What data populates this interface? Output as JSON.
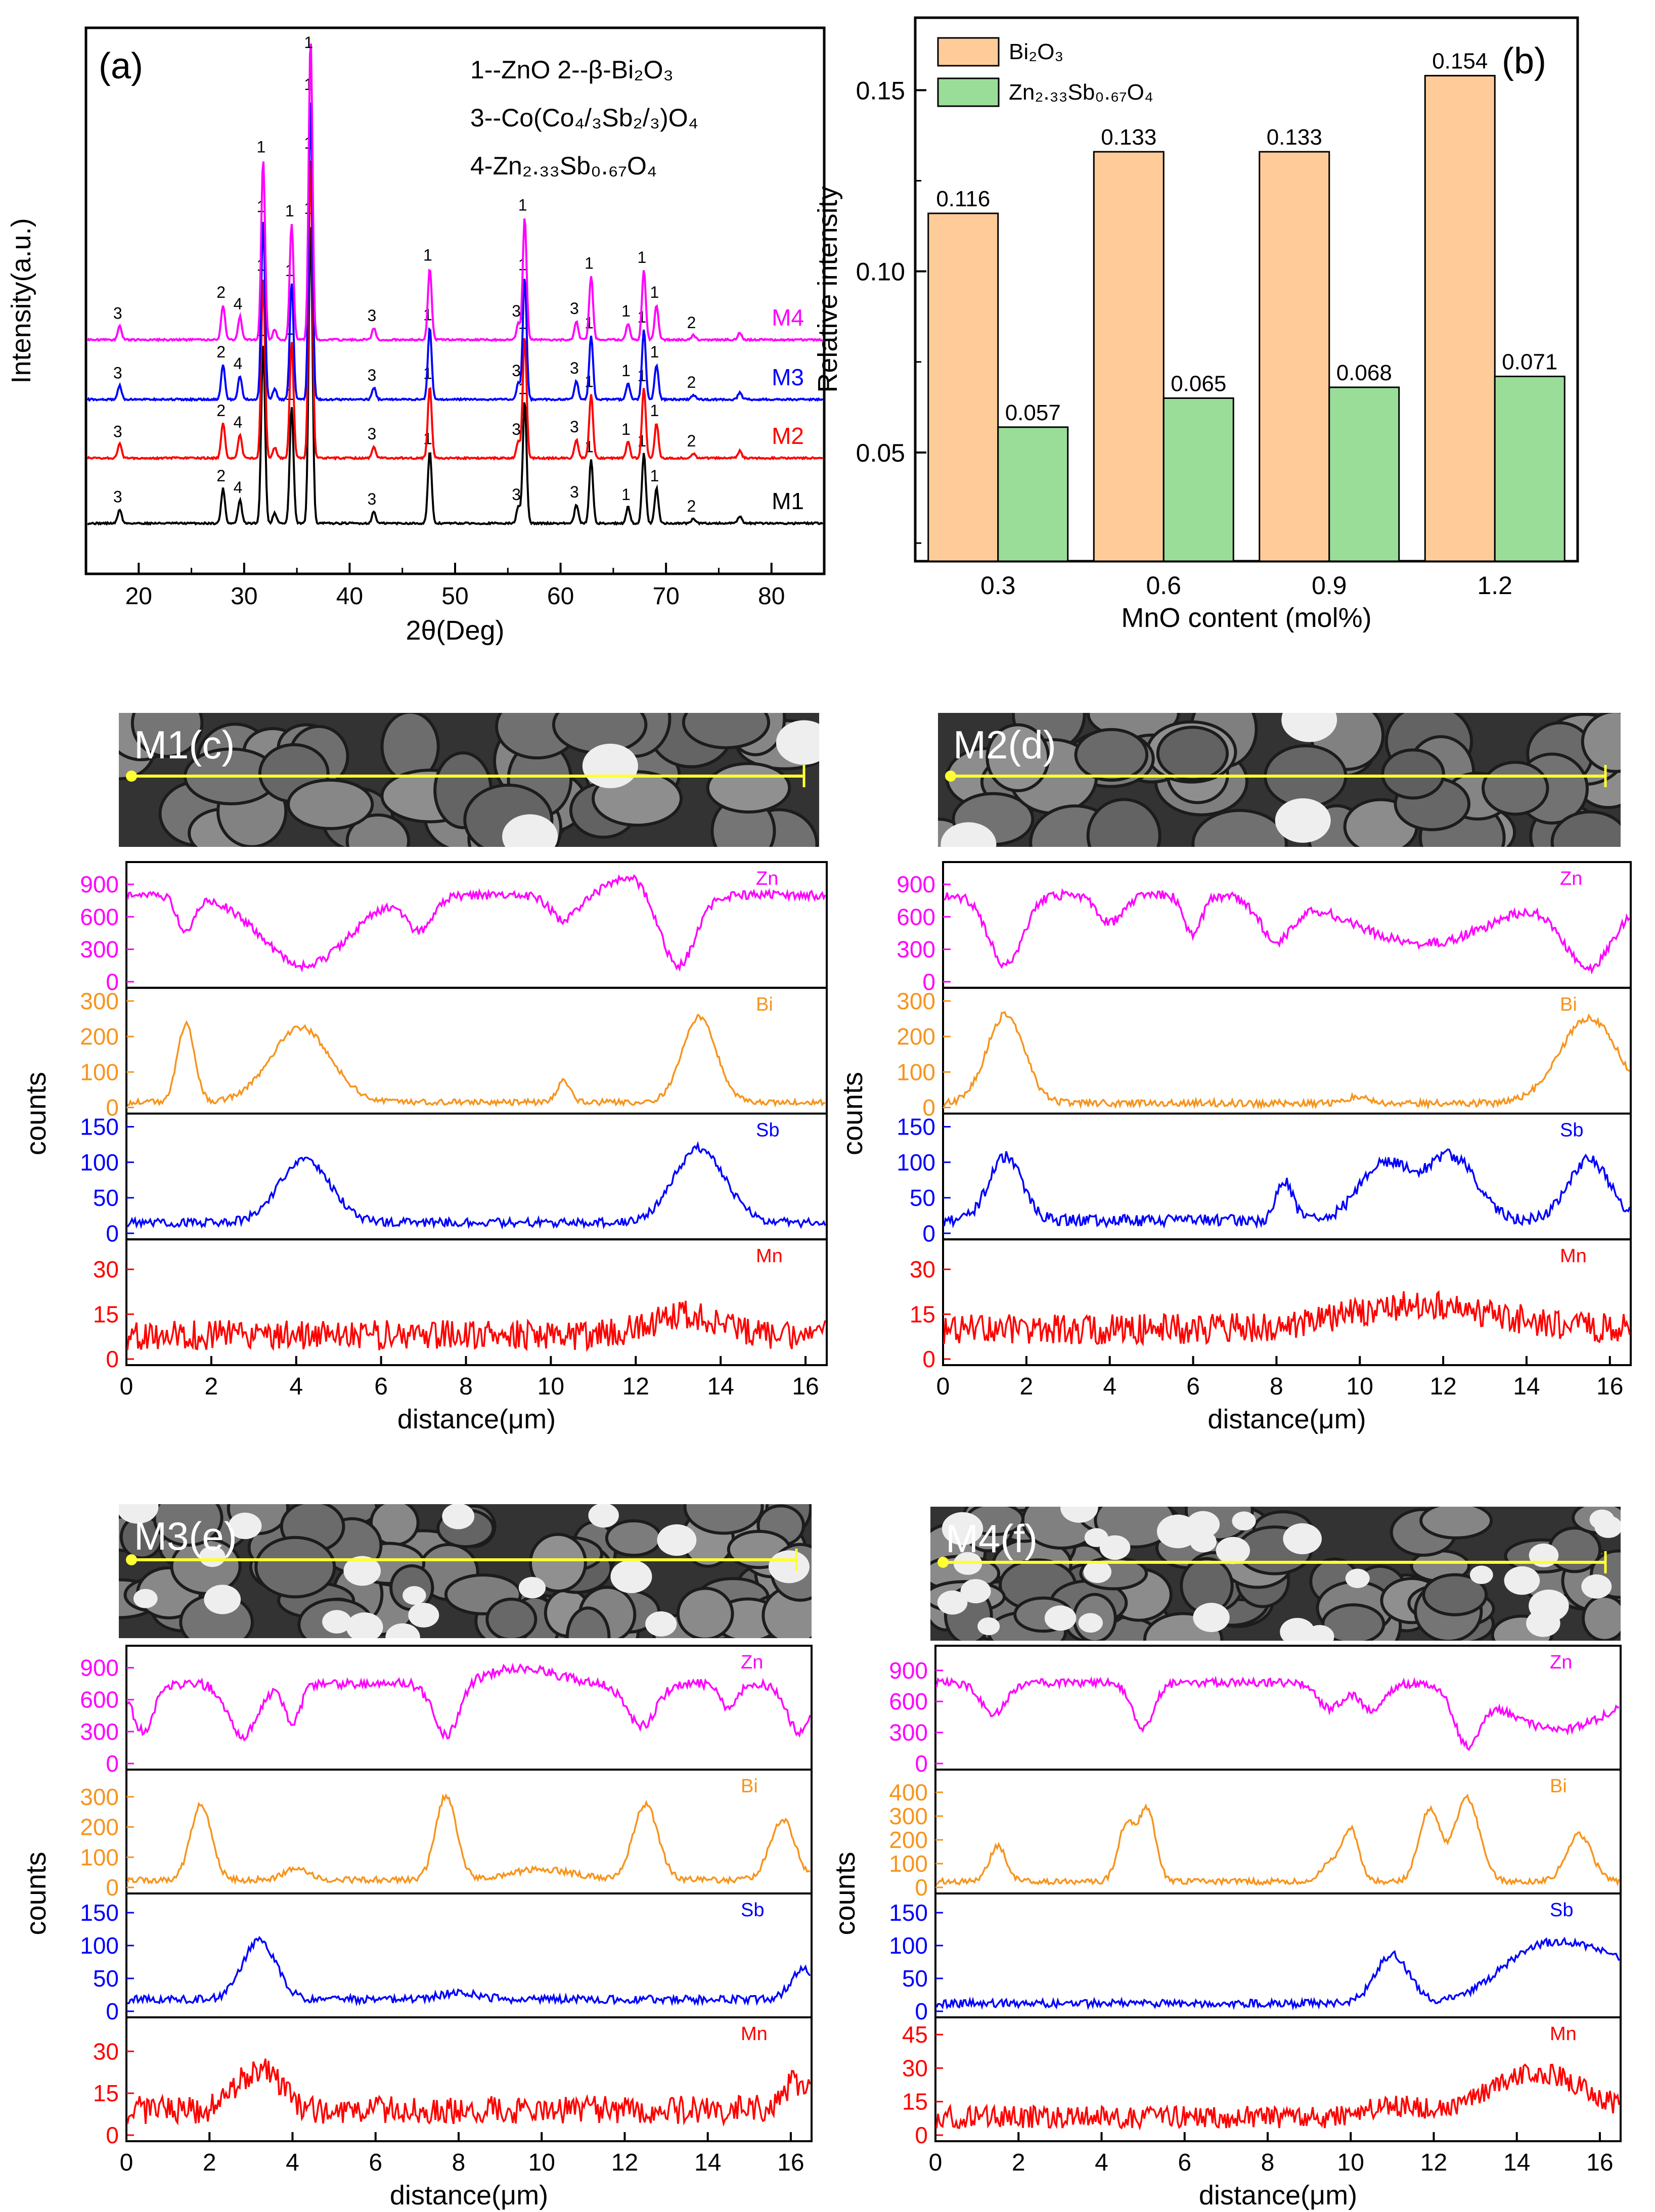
{
  "chart_data": [
    {
      "id": "a",
      "type": "line",
      "panel_label": "(a)",
      "xlabel": "2θ(Deg)",
      "ylabel": "Intensity(a.u.)",
      "xlim": [
        15,
        85
      ],
      "xticks": [
        20,
        30,
        40,
        50,
        60,
        70,
        80
      ],
      "legend_lines": [
        "1--ZnO   2--β-Bi₂O₃",
        "3--Co(Co₄/₃Sb₂/₃)O₄",
        "4-Zn₂.₃₃Sb₀.₆₇O₄"
      ],
      "series": [
        {
          "name": "M1",
          "color": "#000000"
        },
        {
          "name": "M2",
          "color": "#ff0000"
        },
        {
          "name": "M3",
          "color": "#0000ff"
        },
        {
          "name": "M4",
          "color": "#ff00ff"
        }
      ],
      "peaks": [
        {
          "x": 18.2,
          "height": 0.12,
          "label": "3"
        },
        {
          "x": 28.0,
          "height": 0.3,
          "label": "2"
        },
        {
          "x": 29.6,
          "height": 0.2,
          "label": "4"
        },
        {
          "x": 31.8,
          "height": 1.55,
          "label": "1"
        },
        {
          "x": 32.9,
          "height": 0.09,
          "label": ""
        },
        {
          "x": 34.5,
          "height": 1.0,
          "label": "1"
        },
        {
          "x": 36.3,
          "height": 2.6,
          "label": "1"
        },
        {
          "x": 42.3,
          "height": 0.1,
          "label": "3"
        },
        {
          "x": 47.6,
          "height": 0.62,
          "label": "1"
        },
        {
          "x": 56.0,
          "height": 0.14,
          "label": "3"
        },
        {
          "x": 56.6,
          "height": 1.05,
          "label": "1"
        },
        {
          "x": 61.5,
          "height": 0.16,
          "label": "3"
        },
        {
          "x": 62.9,
          "height": 0.55,
          "label": "1"
        },
        {
          "x": 66.4,
          "height": 0.14,
          "label": "1"
        },
        {
          "x": 67.9,
          "height": 0.6,
          "label": "1"
        },
        {
          "x": 69.1,
          "height": 0.3,
          "label": "1"
        },
        {
          "x": 72.6,
          "height": 0.04,
          "label": "2"
        },
        {
          "x": 77.0,
          "height": 0.06,
          "label": ""
        }
      ]
    },
    {
      "id": "b",
      "type": "bar",
      "panel_label": "(b)",
      "xlabel": "MnO content (mol%)",
      "ylabel": "Relative intensity",
      "categories": [
        "0.3",
        "0.6",
        "0.9",
        "1.2"
      ],
      "ylim": [
        0.02,
        0.17
      ],
      "yticks": [
        "0.05",
        "0.10",
        "0.15"
      ],
      "series": [
        {
          "name": "Bi₂O₃",
          "color": "#ffcc99",
          "values": [
            0.116,
            0.133,
            0.133,
            0.154
          ],
          "labels": [
            "0.116",
            "0.133",
            "0.133",
            "0.154"
          ]
        },
        {
          "name": "Zn₂.₃₃Sb₀.₆₇O₄",
          "color": "#99dd99",
          "values": [
            0.057,
            0.065,
            0.068,
            0.071
          ],
          "labels": [
            "0.057",
            "0.065",
            "0.068",
            "0.071"
          ]
        }
      ],
      "legend_position": "top-left"
    },
    {
      "id": "c",
      "type": "line",
      "sem_label": "M1(c)",
      "xlabel": "distance(μm)",
      "ylabel": "counts",
      "xlim": [
        0,
        16.5
      ],
      "xticks": [
        "0",
        "2",
        "4",
        "6",
        "8",
        "10",
        "12",
        "14",
        "16"
      ],
      "tracks": [
        {
          "element": "Zn",
          "color": "#ff00ff",
          "yticks": [
            "900",
            "600",
            "300",
            "0"
          ],
          "ymax": 1050,
          "base": 800,
          "noise": 40,
          "features": [
            [
              1.4,
              -320,
              0.2
            ],
            [
              4.2,
              -650,
              1.0
            ],
            [
              6.9,
              -320,
              0.3
            ],
            [
              10.3,
              -230,
              0.3
            ],
            [
              13.0,
              -650,
              0.4
            ],
            [
              11.8,
              180,
              0.4
            ]
          ]
        },
        {
          "element": "Bi",
          "color": "#f7941d",
          "yticks": [
            "300",
            "200",
            "100",
            "0"
          ],
          "ymax": 320,
          "base": 15,
          "noise": 8,
          "features": [
            [
              1.4,
              220,
              0.2
            ],
            [
              4.1,
              210,
              0.7
            ],
            [
              10.3,
              60,
              0.15
            ],
            [
              13.5,
              240,
              0.4
            ]
          ]
        },
        {
          "element": "Sb",
          "color": "#0000ff",
          "yticks": [
            "150",
            "100",
            "50",
            "0"
          ],
          "ymax": 160,
          "base": 15,
          "noise": 6,
          "features": [
            [
              4.2,
              90,
              0.6
            ],
            [
              13.5,
              105,
              0.6
            ]
          ]
        },
        {
          "element": "Mn",
          "color": "#ff0000",
          "yticks": [
            "30",
            "15",
            "0"
          ],
          "ymax": 38,
          "base": 8,
          "noise": 5,
          "features": [
            [
              13.2,
              7,
              0.8
            ]
          ]
        }
      ]
    },
    {
      "id": "d",
      "type": "line",
      "sem_label": "M2(d)",
      "xlabel": "distance(μm)",
      "ylabel": "counts",
      "xlim": [
        0,
        16.5
      ],
      "xticks": [
        "0",
        "2",
        "4",
        "6",
        "8",
        "10",
        "12",
        "14",
        "16"
      ],
      "tracks": [
        {
          "element": "Zn",
          "color": "#ff00ff",
          "yticks": [
            "900",
            "600",
            "300",
            "0"
          ],
          "ymax": 1050,
          "base": 800,
          "noise": 45,
          "features": [
            [
              1.5,
              -650,
              0.4
            ],
            [
              4.0,
              -250,
              0.3
            ],
            [
              6.0,
              -380,
              0.2
            ],
            [
              8.0,
              -380,
              0.4
            ],
            [
              11.5,
              -450,
              1.6
            ],
            [
              15.5,
              -650,
              0.6
            ]
          ]
        },
        {
          "element": "Bi",
          "color": "#f7941d",
          "yticks": [
            "300",
            "200",
            "100",
            "0"
          ],
          "ymax": 320,
          "base": 12,
          "noise": 10,
          "features": [
            [
              1.5,
              250,
              0.45
            ],
            [
              15.5,
              240,
              0.7
            ],
            [
              10.0,
              18,
              0.3
            ]
          ]
        },
        {
          "element": "Sb",
          "color": "#0000ff",
          "yticks": [
            "150",
            "100",
            "50",
            "0"
          ],
          "ymax": 160,
          "base": 18,
          "noise": 8,
          "features": [
            [
              1.5,
              90,
              0.4
            ],
            [
              8.2,
              55,
              0.2
            ],
            [
              10.6,
              80,
              0.6
            ],
            [
              12.2,
              90,
              0.6
            ],
            [
              15.5,
              85,
              0.5
            ]
          ]
        },
        {
          "element": "Mn",
          "color": "#ff0000",
          "yticks": [
            "30",
            "15",
            "0"
          ],
          "ymax": 38,
          "base": 10,
          "noise": 5,
          "features": [
            [
              11.5,
              8,
              1.8
            ]
          ]
        }
      ]
    },
    {
      "id": "e",
      "type": "line",
      "sem_label": "M3(e)",
      "xlabel": "distance(μm)",
      "ylabel": "counts",
      "xlim": [
        0,
        16.5
      ],
      "xticks": [
        "0",
        "2",
        "4",
        "6",
        "8",
        "10",
        "12",
        "14",
        "16"
      ],
      "tracks": [
        {
          "element": "Zn",
          "color": "#ff00ff",
          "yticks": [
            "900",
            "600",
            "300",
            "0"
          ],
          "ymax": 1050,
          "base": 750,
          "noise": 45,
          "features": [
            [
              0.4,
              -450,
              0.25
            ],
            [
              2.8,
              -500,
              0.35
            ],
            [
              4.0,
              -350,
              0.2
            ],
            [
              7.7,
              -500,
              0.3
            ],
            [
              12.4,
              -400,
              0.35
            ],
            [
              14.5,
              -250,
              0.2
            ],
            [
              16.2,
              -450,
              0.3
            ],
            [
              9.5,
              150,
              0.8
            ]
          ]
        },
        {
          "element": "Bi",
          "color": "#f7941d",
          "yticks": [
            "300",
            "200",
            "100",
            "0"
          ],
          "ymax": 370,
          "base": 25,
          "noise": 10,
          "features": [
            [
              1.8,
              250,
              0.25
            ],
            [
              4.1,
              40,
              0.3
            ],
            [
              7.7,
              280,
              0.25
            ],
            [
              10.0,
              35,
              0.8
            ],
            [
              12.5,
              250,
              0.3
            ],
            [
              15.8,
              200,
              0.3
            ]
          ]
        },
        {
          "element": "Sb",
          "color": "#0000ff",
          "yticks": [
            "150",
            "100",
            "50",
            "0"
          ],
          "ymax": 170,
          "base": 18,
          "noise": 6,
          "features": [
            [
              3.2,
              90,
              0.4
            ],
            [
              8.0,
              10,
              0.5
            ],
            [
              16.3,
              45,
              0.3
            ]
          ]
        },
        {
          "element": "Mn",
          "color": "#ff0000",
          "yticks": [
            "30",
            "15",
            "0"
          ],
          "ymax": 40,
          "base": 9,
          "noise": 5,
          "features": [
            [
              3.2,
              15,
              0.5
            ],
            [
              16.2,
              10,
              0.4
            ]
          ]
        }
      ]
    },
    {
      "id": "f",
      "type": "line",
      "sem_label": "M4(f)",
      "xlabel": "distance(μm)",
      "ylabel": "counts",
      "xlim": [
        0,
        16.5
      ],
      "xticks": [
        "0",
        "2",
        "4",
        "6",
        "8",
        "10",
        "12",
        "14",
        "16"
      ],
      "tracks": [
        {
          "element": "Zn",
          "color": "#ff00ff",
          "yticks": [
            "900",
            "600",
            "300",
            "0"
          ],
          "ymax": 1080,
          "base": 780,
          "noise": 40,
          "features": [
            [
              1.4,
              -300,
              0.3
            ],
            [
              5.0,
              -450,
              0.25
            ],
            [
              9.5,
              -250,
              0.3
            ],
            [
              10.5,
              -250,
              0.3
            ],
            [
              12.8,
              -500,
              0.3
            ],
            [
              15.0,
              -450,
              1.3
            ]
          ]
        },
        {
          "element": "Bi",
          "color": "#f7941d",
          "yticks": [
            "400",
            "300",
            "200",
            "100",
            "0"
          ],
          "ymax": 470,
          "base": 25,
          "noise": 12,
          "features": [
            [
              1.5,
              150,
              0.2
            ],
            [
              4.6,
              240,
              0.2
            ],
            [
              5.1,
              300,
              0.2
            ],
            [
              9.5,
              80,
              0.2
            ],
            [
              10.0,
              220,
              0.2
            ],
            [
              11.9,
              300,
              0.25
            ],
            [
              12.8,
              350,
              0.3
            ],
            [
              15.5,
              200,
              0.3
            ]
          ]
        },
        {
          "element": "Sb",
          "color": "#0000ff",
          "yticks": [
            "150",
            "100",
            "50",
            "0"
          ],
          "ymax": 170,
          "base": 12,
          "noise": 6,
          "features": [
            [
              11.0,
              75,
              0.4
            ],
            [
              14.6,
              85,
              1.0
            ],
            [
              16.3,
              55,
              0.8
            ]
          ]
        },
        {
          "element": "Mn",
          "color": "#ff0000",
          "yticks": [
            "45",
            "30",
            "15",
            "0"
          ],
          "ymax": 50,
          "base": 8,
          "noise": 5,
          "features": [
            [
              14.5,
              20,
              1.2
            ],
            [
              11.0,
              5,
              0.6
            ]
          ]
        }
      ]
    }
  ]
}
